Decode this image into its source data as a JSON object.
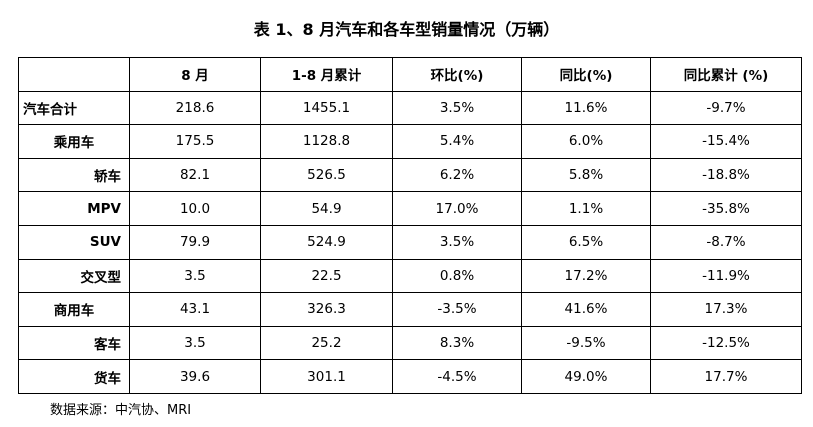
{
  "header": {
    "title": "表 1、8 月汽车和各车型销量情况（万辆）"
  },
  "table": {
    "columns": [
      "",
      "8 月",
      "1-8 月累计",
      "环比(%)",
      "同比(%)",
      "同比累计 (%)"
    ],
    "rows": [
      [
        "汽车合计",
        "218.6",
        "1455.1",
        "3.5%",
        "11.6%",
        "-9.7%"
      ],
      [
        "乘用车",
        "175.5",
        "1128.8",
        "5.4%",
        "6.0%",
        "-15.4%"
      ],
      [
        "轿车",
        "82.1",
        "526.5",
        "6.2%",
        "5.8%",
        "-18.8%"
      ],
      [
        "MPV",
        "10.0",
        "54.9",
        "17.0%",
        "1.1%",
        "-35.8%"
      ],
      [
        "SUV",
        "79.9",
        "524.9",
        "3.5%",
        "6.5%",
        "-8.7%"
      ],
      [
        "交叉型",
        "3.5",
        "22.5",
        "0.8%",
        "17.2%",
        "-11.9%"
      ],
      [
        "商用车",
        "43.1",
        "326.3",
        "-3.5%",
        "41.6%",
        "17.3%"
      ],
      [
        "客车",
        "3.5",
        "25.2",
        "8.3%",
        "-9.5%",
        "-12.5%"
      ],
      [
        "货车",
        "39.6",
        "301.1",
        "-4.5%",
        "49.0%",
        "17.7%"
      ]
    ]
  },
  "source": "数据来源：中汽协、MRI"
}
